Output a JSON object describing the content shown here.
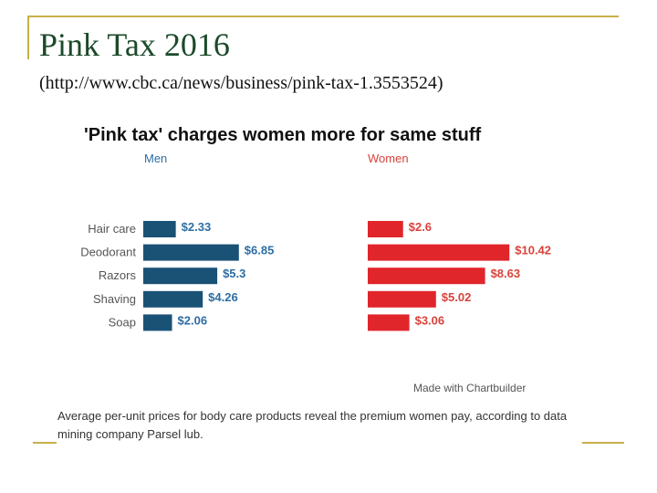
{
  "slide": {
    "title": "Pink Tax 2016",
    "subtitle": "(http://www.cbc.ca/news/business/pink-tax-1.3553524)"
  },
  "chart_data": {
    "type": "bar",
    "orientation": "horizontal",
    "title": "'Pink tax' charges women more for same stuff",
    "categories": [
      "Hair care",
      "Deodorant",
      "Razors",
      "Shaving",
      "Soap"
    ],
    "series": [
      {
        "name": "Men",
        "values": [
          2.33,
          6.85,
          5.3,
          4.26,
          2.06
        ],
        "labels": [
          "$2.33",
          "$6.85",
          "$5.3",
          "$4.26",
          "$2.06"
        ],
        "color": "#1a5276"
      },
      {
        "name": "Women",
        "values": [
          2.6,
          10.42,
          8.63,
          5.02,
          3.06
        ],
        "labels": [
          "$2.6",
          "$10.42",
          "$8.63",
          "$5.02",
          "$3.06"
        ],
        "color": "#e0262b"
      }
    ],
    "credit": "Made with Chartbuilder",
    "caption": "Average per-unit prices for body care products reveal the premium women pay, according to data mining company Parsel lub.",
    "label_color": "#555555",
    "men_label_color": "#2e6da4",
    "women_label_color": "#d9423b"
  }
}
